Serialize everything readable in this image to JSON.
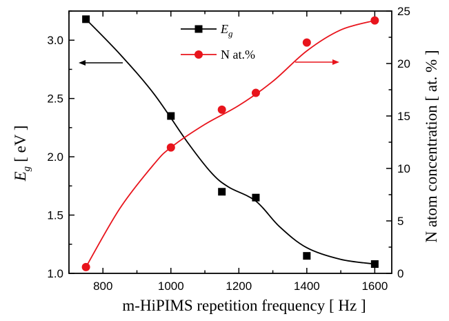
{
  "chart_data": {
    "type": "line",
    "xlabel": "m-HiPIMS repetition frequency  [ Hz ]",
    "xlim": [
      700,
      1650
    ],
    "x_ticks": [
      800,
      1000,
      1200,
      1400,
      1600
    ],
    "y_left": {
      "label_main": "E",
      "label_sub": "g",
      "label_unit": "[ eV ]",
      "lim": [
        1.0,
        3.25
      ],
      "ticks": [
        "1.0",
        "1.5",
        "2.0",
        "2.5",
        "3.0"
      ]
    },
    "y_right": {
      "label": "N atom concentration  [ at. % ]",
      "lim": [
        0,
        25
      ],
      "ticks": [
        "0",
        "5",
        "10",
        "15",
        "20",
        "25"
      ]
    },
    "x": [
      750,
      1000,
      1150,
      1250,
      1400,
      1600
    ],
    "series": [
      {
        "name": "E",
        "name_sub": "g",
        "axis": "left",
        "color": "#000000",
        "marker": "square",
        "values": [
          3.18,
          2.35,
          1.7,
          1.65,
          1.15,
          1.08
        ],
        "curve": [
          [
            750,
            3.18
          ],
          [
            850,
            2.88
          ],
          [
            950,
            2.54
          ],
          [
            1050,
            2.12
          ],
          [
            1120,
            1.86
          ],
          [
            1170,
            1.74
          ],
          [
            1250,
            1.62
          ],
          [
            1320,
            1.4
          ],
          [
            1400,
            1.22
          ],
          [
            1500,
            1.12
          ],
          [
            1600,
            1.08
          ]
        ]
      },
      {
        "name": "N at.%",
        "axis": "right",
        "color": "#e8141c",
        "marker": "circle",
        "values": [
          0.6,
          12.0,
          15.6,
          17.2,
          22.0,
          24.1
        ],
        "curve": [
          [
            750,
            0.6
          ],
          [
            850,
            6.2
          ],
          [
            950,
            10.4
          ],
          [
            1000,
            12.0
          ],
          [
            1100,
            14.2
          ],
          [
            1200,
            16.0
          ],
          [
            1300,
            18.3
          ],
          [
            1400,
            21.2
          ],
          [
            1500,
            23.2
          ],
          [
            1600,
            24.1
          ]
        ]
      }
    ],
    "legend_position": "top-center",
    "grid": false
  }
}
